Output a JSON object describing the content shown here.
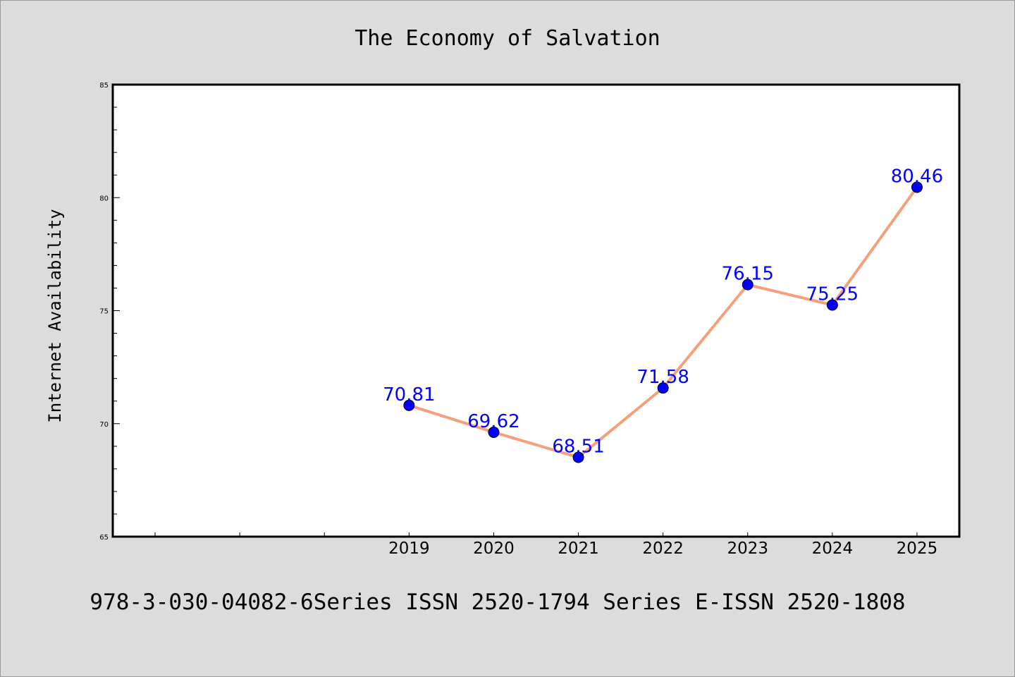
{
  "chart_data": {
    "type": "line",
    "title": "The Economy of Salvation",
    "xlabel": "",
    "ylabel": "Internet Availability",
    "categories": [
      "2019",
      "2020",
      "2021",
      "2022",
      "2023",
      "2024",
      "2025"
    ],
    "x_axis_slots": 10,
    "x_first_category_slot": 3,
    "series": [
      {
        "values": [
          70.81,
          69.62,
          68.51,
          71.58,
          76.15,
          75.25,
          80.46
        ],
        "data_labels": [
          "70.81",
          "69.62",
          "68.51",
          "71.58",
          "76.15",
          "75.25",
          "80.46"
        ]
      }
    ],
    "ylim": [
      65,
      85
    ],
    "y_major_ticks": [
      65,
      70,
      75,
      80,
      85
    ],
    "y_minor_step": 1,
    "grid": false,
    "legend": "none",
    "colors": {
      "background": "#dcdcdc",
      "plot_background": "#ffffff",
      "line": "#f4a07c",
      "marker": "#0000ff",
      "data_label": "#0000ff",
      "axes": "#000000"
    }
  },
  "footer": {
    "text": "978-3-030-04082-6Series ISSN 2520-1794 Series E-ISSN 2520-1808"
  }
}
